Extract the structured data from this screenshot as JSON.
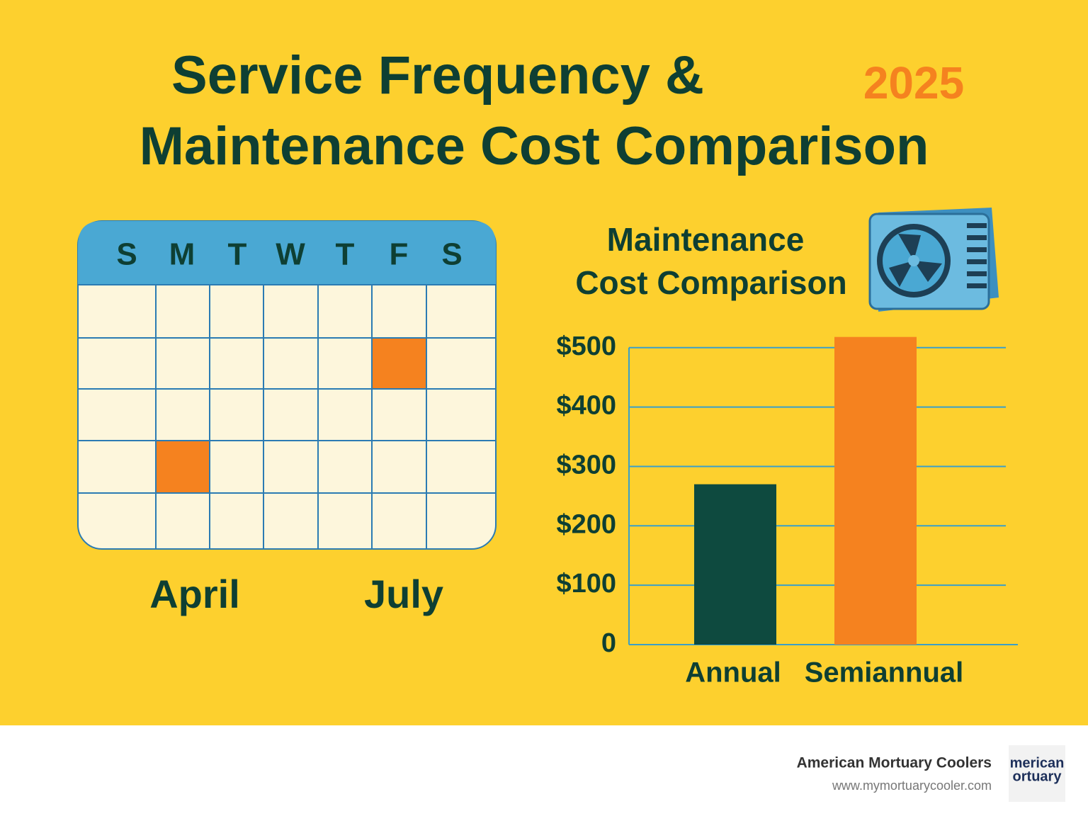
{
  "header": {
    "title_line1": "Service Frequency &",
    "title_line2": "Maintenance Cost Comparison",
    "year": "2025"
  },
  "calendar": {
    "days": [
      "S",
      "M",
      "T",
      "W",
      "T",
      "F",
      "S"
    ],
    "months": [
      "April",
      "July"
    ]
  },
  "chart_data": {
    "type": "bar",
    "title_line1": "Maintenance",
    "title_line2": "Cost Comparison",
    "categories": [
      "Annual",
      "Semiannual"
    ],
    "values": [
      270,
      518
    ],
    "colors": [
      "#0e4a3f",
      "#f5821f"
    ],
    "ylim": [
      0,
      520
    ],
    "yticks": [
      0,
      {
        "value": 100,
        "label": "$100"
      },
      {
        "value": 200,
        "label": "$200"
      },
      {
        "value": 300,
        "label": "$300"
      },
      {
        "value": 400,
        "label": "$400"
      },
      {
        "value": 500,
        "label": "$500"
      }
    ],
    "grid": true
  },
  "footer": {
    "company": "American Mortuary Coolers",
    "url": "www.mymortuarycooler.com",
    "logo_line1": "merican",
    "logo_line2": "ortuary"
  }
}
